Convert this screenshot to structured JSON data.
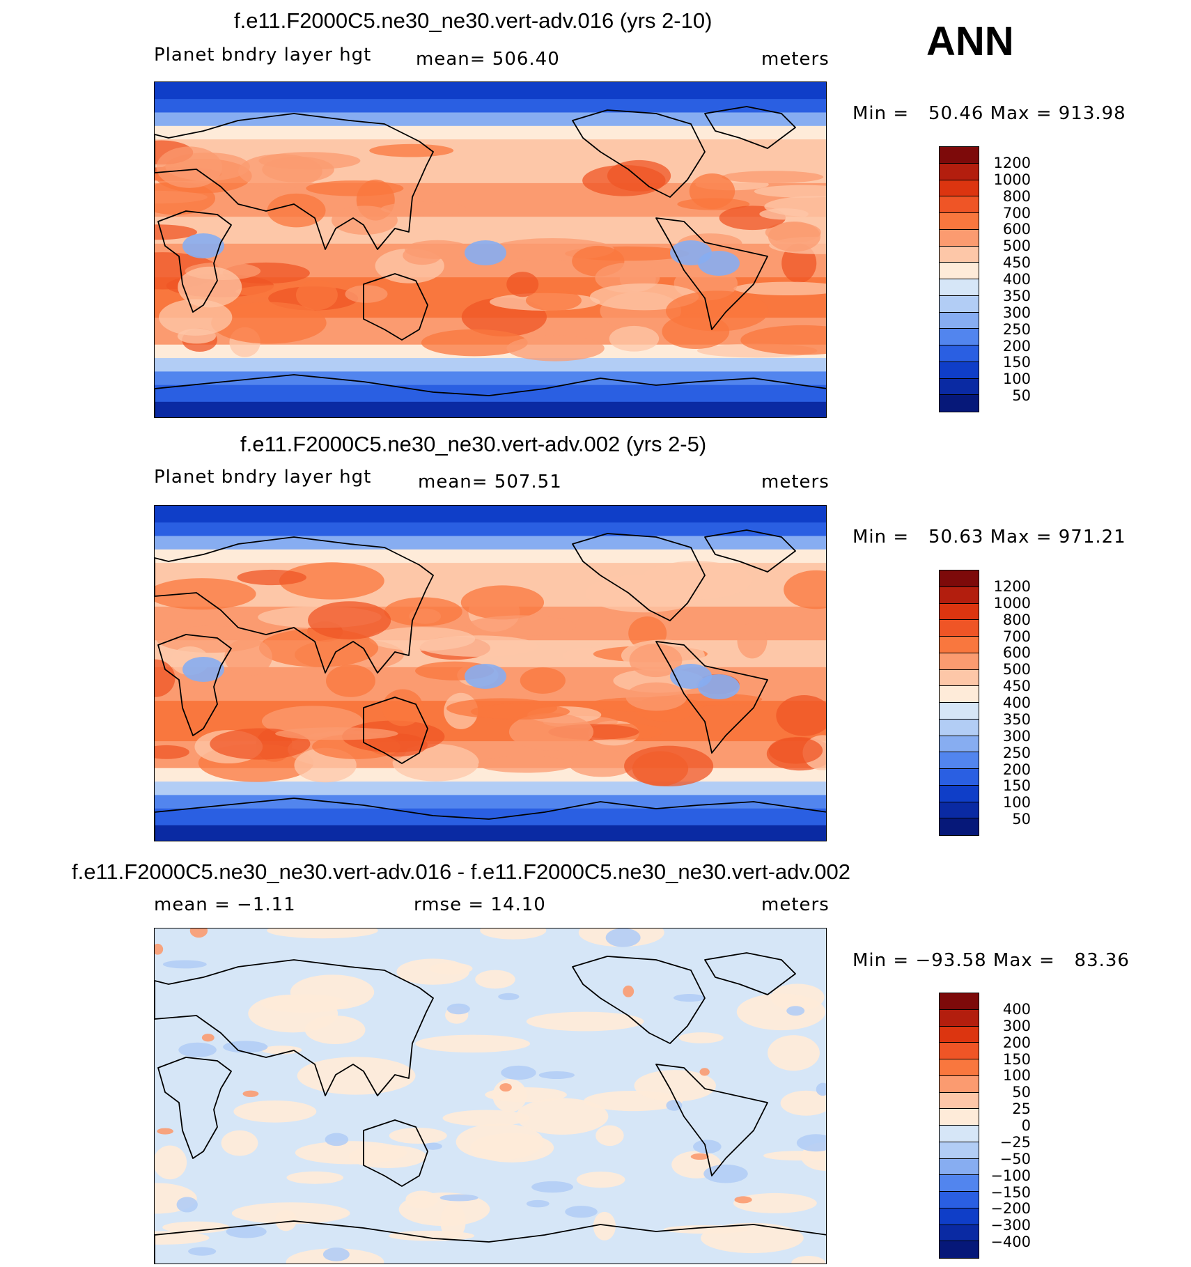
{
  "season": "ANN",
  "panels": [
    {
      "title": "f.e11.F2000C5.ne30_ne30.vert-adv.016 (yrs 2-10)",
      "variable": "Planet bndry layer hgt",
      "stat": "mean=  506.40",
      "units": "meters",
      "minmax": "Min =   50.46 Max = 913.98",
      "field": "abs",
      "cbar_labels": [
        "1200",
        "1000",
        "800",
        "700",
        "600",
        "500",
        "450",
        "400",
        "350",
        "300",
        "250",
        "200",
        "150",
        "100",
        "50"
      ]
    },
    {
      "title": "f.e11.F2000C5.ne30_ne30.vert-adv.002 (yrs 2-5)",
      "variable": "Planet bndry layer hgt",
      "stat": "mean=  507.51",
      "units": "meters",
      "minmax": "Min =   50.63 Max = 971.21",
      "field": "abs",
      "cbar_labels": [
        "1200",
        "1000",
        "800",
        "700",
        "600",
        "500",
        "450",
        "400",
        "350",
        "300",
        "250",
        "200",
        "150",
        "100",
        "50"
      ]
    },
    {
      "title": "f.e11.F2000C5.ne30_ne30.vert-adv.016 - f.e11.F2000C5.ne30_ne30.vert-adv.002",
      "variable": "mean =   −1.11",
      "stat": "rmse =   14.10",
      "units": "meters",
      "minmax": "Min = −93.58 Max =   83.36",
      "field": "diff",
      "cbar_labels": [
        "400",
        "300",
        "200",
        "150",
        "100",
        "50",
        "25",
        "0",
        "−25",
        "−50",
        "−100",
        "−150",
        "−200",
        "−300",
        "−400"
      ]
    }
  ],
  "colors": {
    "abs_scale": [
      "#7d0a0a",
      "#b31e0e",
      "#dc3510",
      "#ef5526",
      "#f9773e",
      "#fb9b70",
      "#fdc7a8",
      "#feebd9",
      "#d6e6f7",
      "#b2cdf5",
      "#87adf1",
      "#5285ee",
      "#2a5fe2",
      "#0f3ec8",
      "#0a2aa3",
      "#061879"
    ],
    "diff_scale": [
      "#7d0a0a",
      "#b31e0e",
      "#dc3510",
      "#ef5526",
      "#f9773e",
      "#fb9b70",
      "#fdc7a8",
      "#feebd9",
      "#d6e6f7",
      "#b2cdf5",
      "#87adf1",
      "#5285ee",
      "#2a5fe2",
      "#0f3ec8",
      "#0a2aa3",
      "#061879"
    ]
  }
}
